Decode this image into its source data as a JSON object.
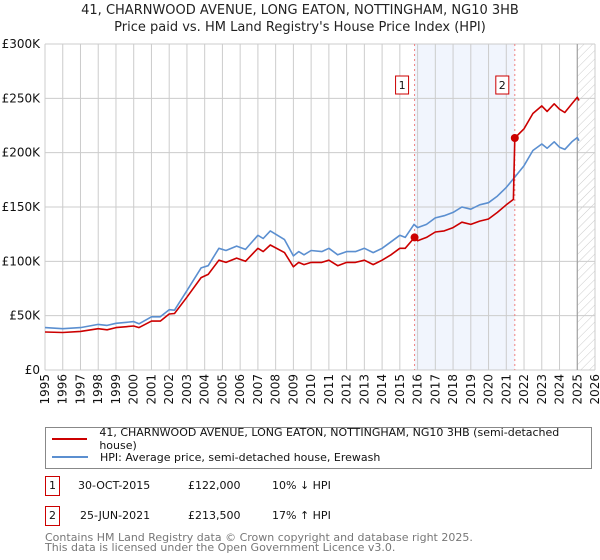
{
  "chart_data": {
    "type": "line",
    "title": "41, CHARNWOOD AVENUE, LONG EATON, NOTTINGHAM, NG10 3HB",
    "subtitle": "Price paid vs. HM Land Registry's House Price Index (HPI)",
    "xlim": [
      1995,
      2026
    ],
    "ylim": [
      0,
      300000
    ],
    "x_ticks": [
      "1995",
      "1996",
      "1997",
      "1998",
      "1999",
      "2000",
      "2001",
      "2002",
      "2003",
      "2004",
      "2005",
      "2006",
      "2007",
      "2008",
      "2009",
      "2010",
      "2011",
      "2012",
      "2013",
      "2014",
      "2015",
      "2016",
      "2017",
      "2018",
      "2019",
      "2020",
      "2021",
      "2022",
      "2023",
      "2024",
      "2025",
      "2026"
    ],
    "y_ticks": [
      {
        "v": 0,
        "label": "£0"
      },
      {
        "v": 50000,
        "label": "£50K"
      },
      {
        "v": 100000,
        "label": "£100K"
      },
      {
        "v": 150000,
        "label": "£150K"
      },
      {
        "v": 200000,
        "label": "£200K"
      },
      {
        "v": 250000,
        "label": "£250K"
      },
      {
        "v": 300000,
        "label": "£300K"
      }
    ],
    "grid": true,
    "series": [
      {
        "name": "41, CHARNWOOD AVENUE, LONG EATON, NOTTINGHAM, NG10 3HB (semi-detached house)",
        "color": "#cc0000",
        "x": [
          1995,
          1996,
          1997,
          1998,
          1998.5,
          1999,
          2000,
          2000.3,
          2001,
          2001.5,
          2002,
          2002.3,
          2003,
          2003.8,
          2004.2,
          2004.8,
          2005.2,
          2005.8,
          2006.3,
          2007,
          2007.3,
          2007.7,
          2008.5,
          2009,
          2009.3,
          2009.6,
          2010,
          2010.6,
          2011,
          2011.5,
          2012,
          2012.5,
          2013,
          2013.5,
          2014,
          2014.5,
          2015,
          2015.3,
          2015.83,
          2016,
          2016.5,
          2017,
          2017.5,
          2018,
          2018.5,
          2019,
          2019.5,
          2020,
          2020.5,
          2021,
          2021.4,
          2021.48,
          2022,
          2022.5,
          2023,
          2023.3,
          2023.7,
          2024,
          2024.3,
          2024.7,
          2025,
          2025.1
        ],
        "y": [
          35000,
          34500,
          35500,
          38000,
          37000,
          39000,
          40500,
          39000,
          45000,
          45000,
          51500,
          52000,
          67000,
          85000,
          88000,
          101000,
          99000,
          103000,
          100000,
          112000,
          109000,
          115000,
          108000,
          95000,
          99000,
          97000,
          99000,
          99000,
          101000,
          96000,
          99000,
          99000,
          101000,
          97000,
          101000,
          106000,
          112000,
          112000,
          122000,
          119000,
          122000,
          127000,
          128000,
          131000,
          136000,
          134000,
          137000,
          139000,
          145000,
          152000,
          157000,
          213500,
          222000,
          236000,
          243000,
          238000,
          245000,
          240000,
          237000,
          245000,
          251000,
          248000
        ]
      },
      {
        "name": "HPI: Average price, semi-detached house, Erewash",
        "color": "#5b8fd0",
        "x": [
          1995,
          1996,
          1997,
          1998,
          1998.5,
          1999,
          2000,
          2000.3,
          2001,
          2001.5,
          2002,
          2002.3,
          2003,
          2003.8,
          2004.2,
          2004.8,
          2005.2,
          2005.8,
          2006.3,
          2007,
          2007.3,
          2007.7,
          2008.5,
          2009,
          2009.3,
          2009.6,
          2010,
          2010.6,
          2011,
          2011.5,
          2012,
          2012.5,
          2013,
          2013.5,
          2014,
          2014.5,
          2015,
          2015.3,
          2015.8,
          2016,
          2016.5,
          2017,
          2017.5,
          2018,
          2018.5,
          2019,
          2019.5,
          2020,
          2020.5,
          2021,
          2021.5,
          2022,
          2022.5,
          2023,
          2023.3,
          2023.7,
          2024,
          2024.3,
          2024.7,
          2025,
          2025.1
        ],
        "y": [
          39000,
          38000,
          39000,
          42000,
          41000,
          43000,
          44500,
          42500,
          49000,
          49000,
          55500,
          55000,
          73000,
          94000,
          96000,
          112000,
          110000,
          114000,
          111000,
          124000,
          121000,
          128000,
          120000,
          105000,
          109000,
          106000,
          110000,
          109000,
          112000,
          106000,
          109000,
          109000,
          112000,
          108000,
          112000,
          118000,
          124000,
          122000,
          134000,
          131000,
          134000,
          140000,
          142000,
          145000,
          150000,
          148000,
          152000,
          154000,
          160000,
          168000,
          178000,
          188000,
          202000,
          208000,
          204000,
          210000,
          205000,
          203000,
          210000,
          214000,
          211000
        ]
      }
    ],
    "sales": [
      {
        "label": "1",
        "x": 2015.83,
        "y": 122000,
        "date": "30-OCT-2015",
        "price": "£122,000",
        "hpi": "10% ↓ HPI"
      },
      {
        "label": "2",
        "x": 2021.48,
        "y": 213500,
        "date": "25-JUN-2021",
        "price": "£213,500",
        "hpi": "17% ↑ HPI"
      }
    ],
    "forecast_from": 2025.0,
    "legend_placement": "below"
  },
  "footer": {
    "line1": "Contains HM Land Registry data © Crown copyright and database right 2025.",
    "line2": "This data is licensed under the Open Government Licence v3.0."
  }
}
